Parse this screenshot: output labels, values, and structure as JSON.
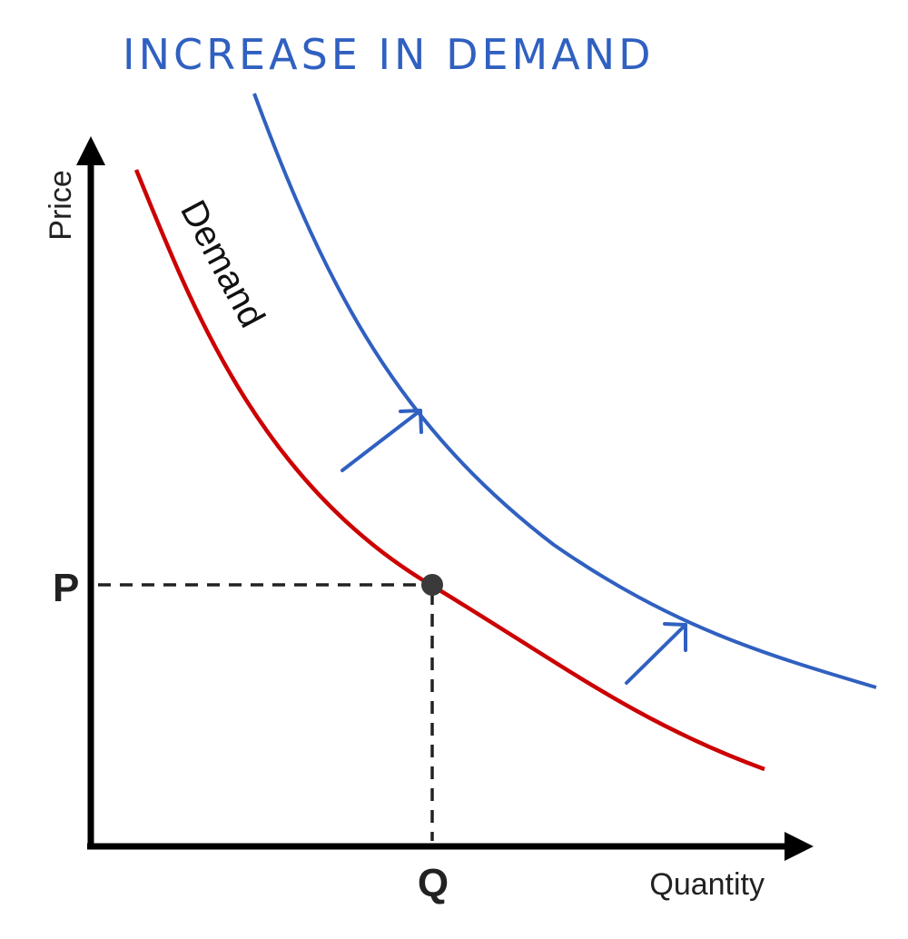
{
  "chart_data": {
    "type": "line",
    "title": "INCREASE IN DEMAND",
    "xlabel": "Quantity",
    "ylabel": "Price",
    "x_ticks": [
      "Q"
    ],
    "y_ticks": [
      "P"
    ],
    "grid": false,
    "series": [
      {
        "name": "Demand",
        "color": "#cc0000",
        "role": "original-demand-curve"
      },
      {
        "name": "",
        "color": "#3060c0",
        "role": "shifted-demand-curve"
      }
    ],
    "equilibrium_point": {
      "x_label": "Q",
      "y_label": "P",
      "color": "#3a3a3a"
    },
    "annotations": [
      {
        "type": "shift-arrow",
        "direction": "up-right",
        "color": "#3060c0"
      },
      {
        "type": "shift-arrow",
        "direction": "up-right",
        "color": "#3060c0"
      }
    ]
  }
}
